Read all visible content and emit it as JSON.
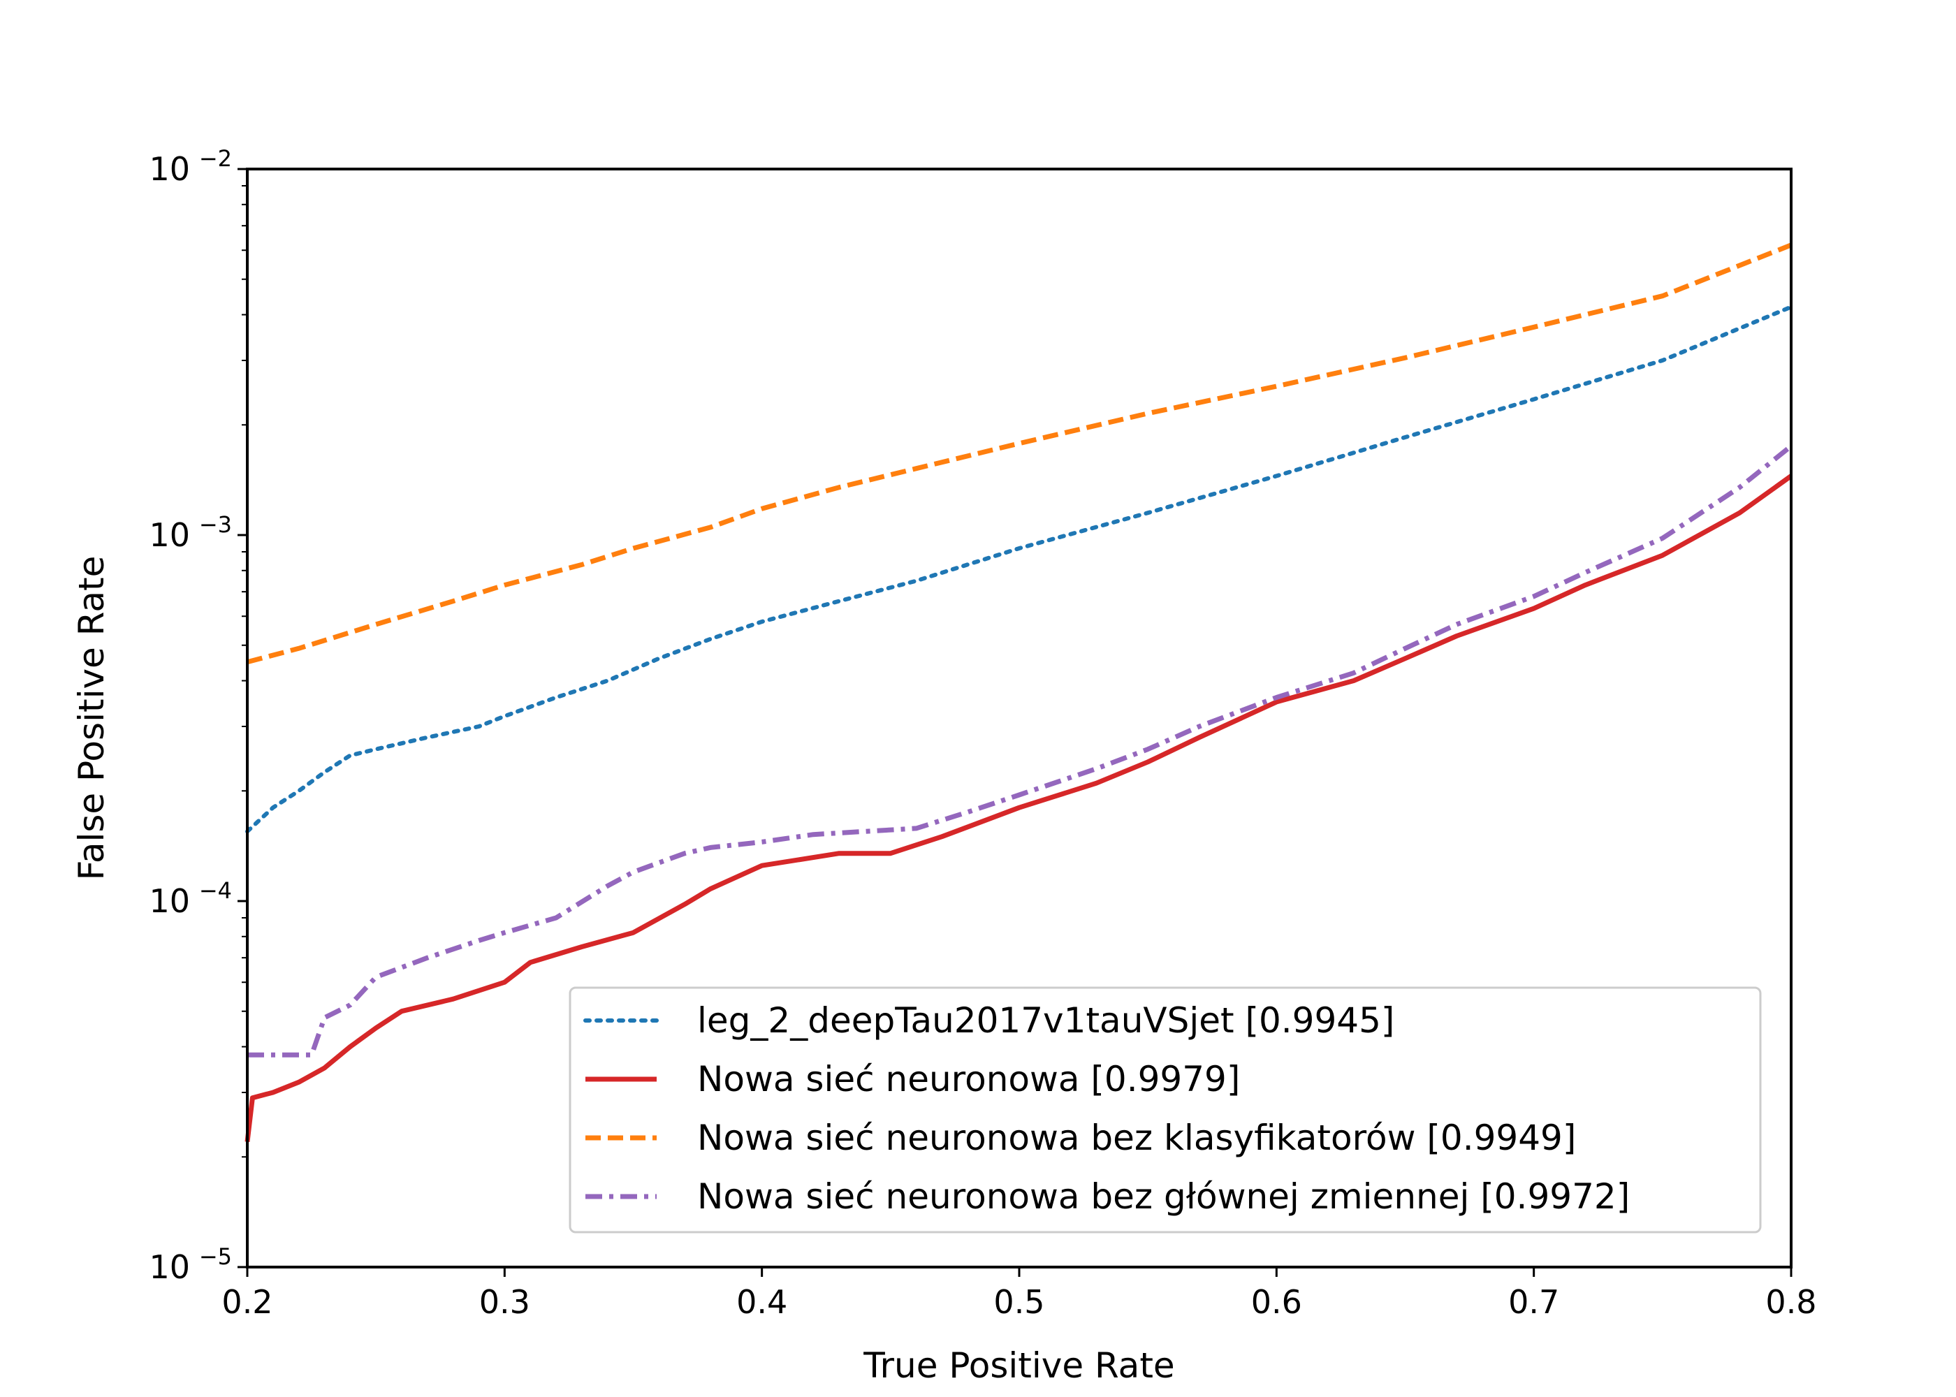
{
  "chart_data": {
    "type": "line",
    "xlabel": "True Positive Rate",
    "ylabel": "False Positive Rate",
    "xlim": [
      0.2,
      0.8
    ],
    "ylim": [
      1e-05,
      0.01
    ],
    "yscale": "log",
    "grid": false,
    "legend_position": "lower-right",
    "x_ticks": [
      "0.2",
      "0.3",
      "0.4",
      "0.5",
      "0.6",
      "0.7",
      "0.8"
    ],
    "y_ticks": [
      {
        "value": 1e-05,
        "base": "10",
        "exp": "−5"
      },
      {
        "value": 0.0001,
        "base": "10",
        "exp": "−4"
      },
      {
        "value": 0.001,
        "base": "10",
        "exp": "−3"
      },
      {
        "value": 0.01,
        "base": "10",
        "exp": "−2"
      }
    ],
    "series": [
      {
        "name": "leg_2_deepTau2017v1tauVSjet [0.9945]",
        "color": "#1f77b4",
        "style": "dotted",
        "x": [
          0.2,
          0.21,
          0.22,
          0.23,
          0.24,
          0.25,
          0.27,
          0.29,
          0.3,
          0.32,
          0.34,
          0.36,
          0.38,
          0.4,
          0.43,
          0.46,
          0.5,
          0.55,
          0.6,
          0.65,
          0.7,
          0.75,
          0.8
        ],
        "y": [
          0.000155,
          0.00018,
          0.0002,
          0.000225,
          0.00025,
          0.00026,
          0.00028,
          0.0003,
          0.00032,
          0.00036,
          0.0004,
          0.00046,
          0.00052,
          0.00058,
          0.00066,
          0.00075,
          0.00092,
          0.00115,
          0.00145,
          0.00185,
          0.00235,
          0.003,
          0.0042
        ]
      },
      {
        "name": "Nowa sieć neuronowa [0.9979]",
        "color": "#d62728",
        "style": "solid",
        "x": [
          0.2,
          0.202,
          0.21,
          0.22,
          0.23,
          0.24,
          0.25,
          0.26,
          0.28,
          0.3,
          0.31,
          0.33,
          0.35,
          0.37,
          0.38,
          0.4,
          0.43,
          0.45,
          0.47,
          0.5,
          0.53,
          0.55,
          0.57,
          0.6,
          0.63,
          0.65,
          0.67,
          0.7,
          0.72,
          0.75,
          0.78,
          0.8
        ],
        "y": [
          2.2e-05,
          2.9e-05,
          3e-05,
          3.2e-05,
          3.5e-05,
          4e-05,
          4.5e-05,
          5e-05,
          5.4e-05,
          6e-05,
          6.8e-05,
          7.5e-05,
          8.2e-05,
          9.8e-05,
          0.000108,
          0.000125,
          0.000135,
          0.000135,
          0.00015,
          0.00018,
          0.00021,
          0.00024,
          0.00028,
          0.00035,
          0.0004,
          0.00046,
          0.00053,
          0.00063,
          0.00073,
          0.00088,
          0.00115,
          0.00145
        ]
      },
      {
        "name": "Nowa sieć neuronowa bez klasyfikatorów [0.9949]",
        "color": "#ff7f0e",
        "style": "dashed",
        "x": [
          0.2,
          0.22,
          0.25,
          0.28,
          0.3,
          0.33,
          0.35,
          0.38,
          0.4,
          0.43,
          0.46,
          0.5,
          0.55,
          0.6,
          0.65,
          0.7,
          0.75,
          0.8
        ],
        "y": [
          0.00045,
          0.00049,
          0.00057,
          0.00066,
          0.00073,
          0.00083,
          0.00092,
          0.00105,
          0.00118,
          0.00135,
          0.00152,
          0.00178,
          0.00215,
          0.00255,
          0.00305,
          0.0037,
          0.0045,
          0.0062
        ]
      },
      {
        "name": "Nowa sieć neuronowa bez głównej zmiennej [0.9972]",
        "color": "#9467bd",
        "style": "dashdot",
        "x": [
          0.2,
          0.225,
          0.23,
          0.24,
          0.25,
          0.27,
          0.29,
          0.3,
          0.32,
          0.34,
          0.35,
          0.37,
          0.38,
          0.4,
          0.42,
          0.44,
          0.46,
          0.48,
          0.5,
          0.53,
          0.55,
          0.57,
          0.6,
          0.63,
          0.65,
          0.67,
          0.7,
          0.72,
          0.75,
          0.78,
          0.8
        ],
        "y": [
          3.8e-05,
          3.8e-05,
          4.8e-05,
          5.2e-05,
          6.2e-05,
          7e-05,
          7.8e-05,
          8.2e-05,
          9e-05,
          0.00011,
          0.00012,
          0.000135,
          0.00014,
          0.000145,
          0.000152,
          0.000155,
          0.000158,
          0.000175,
          0.000195,
          0.00023,
          0.00026,
          0.0003,
          0.00036,
          0.00042,
          0.00049,
          0.00057,
          0.00068,
          0.00079,
          0.00098,
          0.00135,
          0.00175
        ]
      }
    ]
  }
}
